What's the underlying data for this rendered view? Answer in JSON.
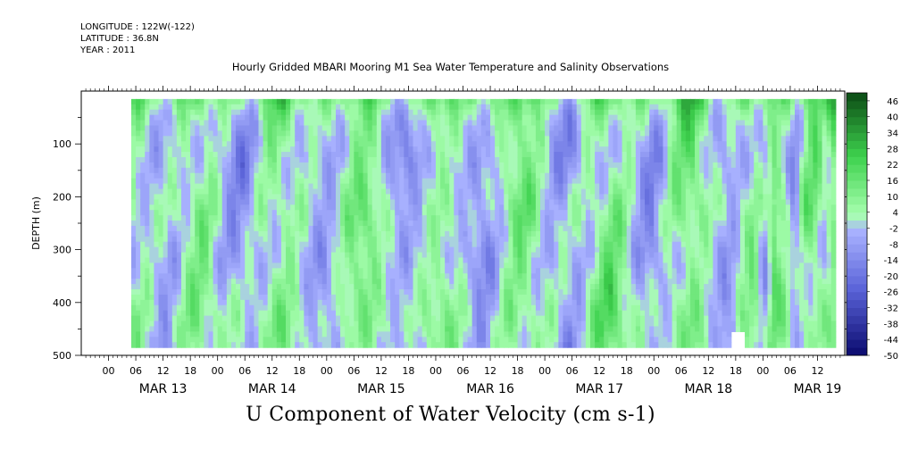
{
  "header": {
    "longitude": "LONGITUDE : 122W(-122)",
    "latitude": "LATITUDE : 36.8N",
    "year": "YEAR : 2011",
    "title": "Hourly Gridded MBARI Mooring M1 Sea Water Temperature and Salinity Observations"
  },
  "variable_title": "U Component of Water Velocity (cm s-1)",
  "colors": {
    "strong_negative": "#0a0a6e",
    "negative": "#5a63d8",
    "weak_negative": "#a9b2ff",
    "weak_positive": "#a8ffb0",
    "positive": "#3ed24e",
    "strong_positive": "#0b4a14"
  },
  "chart_data": {
    "type": "heatmap",
    "title": "Hourly Gridded MBARI Mooring M1 Sea Water Temperature and Salinity Observations",
    "xlabel": "",
    "ylabel": "DEPTH (m)",
    "y_reversed": true,
    "ylim": [
      0,
      500
    ],
    "y_ticks": [
      100,
      200,
      300,
      400,
      500
    ],
    "y_tick_labels": [
      "100",
      "200",
      "300",
      "400",
      "500"
    ],
    "hour_tick_labels": [
      "00",
      "06",
      "12",
      "18"
    ],
    "day_labels": [
      "MAR 13",
      "MAR 14",
      "MAR 15",
      "MAR 16",
      "MAR 17",
      "MAR 18",
      "MAR 19"
    ],
    "x_range_hours": [
      -6,
      162
    ],
    "data_start_hour": 5,
    "data_end_hour": 160,
    "data_depth_range": [
      15,
      485
    ],
    "colorbar": {
      "min": -50,
      "max": 49,
      "step": 3,
      "labels": [
        "46",
        "40",
        "34",
        "28",
        "22",
        "16",
        "10",
        "4",
        "-2",
        "-8",
        "-14",
        "-20",
        "-26",
        "-32",
        "-38",
        "-44",
        "-50"
      ],
      "label_values": [
        46,
        40,
        34,
        28,
        22,
        16,
        10,
        4,
        -2,
        -8,
        -14,
        -20,
        -26,
        -32,
        -38,
        -44,
        -50
      ]
    },
    "field": {
      "description": "U component of water velocity (cm s-1), alternating vertical bands of positive (green) and negative (blue) values across depth; columns are sampled times from MAR 13 05h to MAR 19 16h, rows are depth levels from 15 m to 485 m",
      "column_means": [
        6,
        4,
        -4,
        -8,
        -6,
        2,
        8,
        10,
        4,
        -4,
        -10,
        -12,
        -6,
        4,
        10,
        12,
        6,
        -2,
        -8,
        -10,
        -4,
        6,
        12,
        14,
        8,
        -2,
        -10,
        -14,
        -8,
        4,
        10,
        8,
        2,
        -6,
        -12,
        -10,
        -2,
        8,
        14,
        12,
        4,
        -6,
        -12,
        -14,
        -6,
        4,
        12,
        16,
        10,
        0,
        -8,
        -12,
        -6,
        6,
        14,
        18,
        10,
        -4,
        -14,
        -10,
        4,
        12,
        -8,
        16,
        6,
        -12,
        10,
        14,
        2,
        20
      ],
      "depth_profile": [
        12,
        6,
        2,
        0,
        -1,
        -2,
        -2,
        -1,
        0,
        1,
        2,
        2,
        1,
        0,
        -1,
        -1,
        0,
        1,
        2,
        3,
        4,
        4,
        3,
        2
      ],
      "masked_cells": [
        {
          "hour_from": 137,
          "hour_to": 140,
          "depth_from": 455,
          "depth_to": 485
        }
      ]
    }
  }
}
